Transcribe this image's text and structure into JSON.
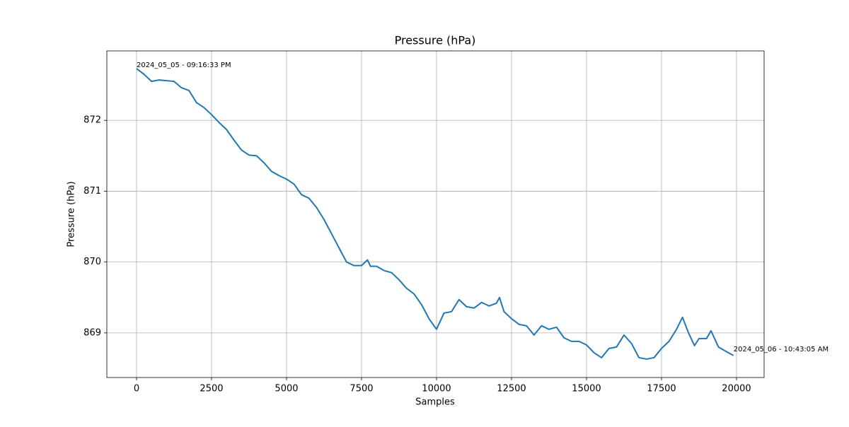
{
  "chart_data": {
    "type": "line",
    "title": "Pressure (hPa)",
    "xlabel": "Samples",
    "ylabel": "Pressure (hPa)",
    "x": [
      0,
      250,
      500,
      750,
      1000,
      1250,
      1500,
      1750,
      2000,
      2250,
      2500,
      2750,
      3000,
      3250,
      3500,
      3750,
      4000,
      4250,
      4500,
      4750,
      5000,
      5250,
      5500,
      5750,
      6000,
      6250,
      6500,
      6750,
      7000,
      7250,
      7500,
      7700,
      7800,
      8000,
      8250,
      8500,
      8750,
      9000,
      9250,
      9500,
      9750,
      10000,
      10250,
      10500,
      10750,
      11000,
      11250,
      11500,
      11750,
      12000,
      12100,
      12250,
      12500,
      12750,
      13000,
      13250,
      13500,
      13750,
      14000,
      14250,
      14500,
      14750,
      15000,
      15250,
      15500,
      15750,
      16000,
      16250,
      16500,
      16750,
      17000,
      17250,
      17500,
      17750,
      18000,
      18200,
      18400,
      18600,
      18750,
      19000,
      19150,
      19400,
      19600,
      19900
    ],
    "values": [
      872.73,
      872.65,
      872.55,
      872.57,
      872.56,
      872.55,
      872.46,
      872.42,
      872.25,
      872.18,
      872.08,
      871.97,
      871.87,
      871.72,
      871.58,
      871.51,
      871.5,
      871.4,
      871.28,
      871.22,
      871.17,
      871.1,
      870.95,
      870.9,
      870.77,
      870.6,
      870.4,
      870.2,
      870.0,
      869.95,
      869.95,
      870.03,
      869.94,
      869.94,
      869.88,
      869.85,
      869.75,
      869.63,
      869.55,
      869.4,
      869.2,
      869.05,
      869.28,
      869.3,
      869.47,
      869.37,
      869.35,
      869.43,
      869.38,
      869.42,
      869.5,
      869.3,
      869.2,
      869.12,
      869.1,
      868.97,
      869.1,
      869.05,
      869.08,
      868.93,
      868.88,
      868.88,
      868.83,
      868.72,
      868.65,
      868.78,
      868.8,
      868.97,
      868.85,
      868.65,
      868.63,
      868.65,
      868.78,
      868.88,
      869.05,
      869.22,
      869.0,
      868.82,
      868.92,
      868.92,
      869.03,
      868.8,
      868.75,
      868.68
    ],
    "color": "#1f77b4",
    "annotations": [
      "2024_05_05 - 09:16:33 PM",
      "2024_05_06 - 10:43:05 AM"
    ],
    "xlim": [
      -990,
      20920
    ],
    "ylim": [
      868.37,
      872.98
    ],
    "xticks": [
      0,
      2500,
      5000,
      7500,
      10000,
      12500,
      15000,
      17500,
      20000
    ],
    "yticks": [
      869,
      870,
      871,
      872
    ],
    "grid": true
  }
}
